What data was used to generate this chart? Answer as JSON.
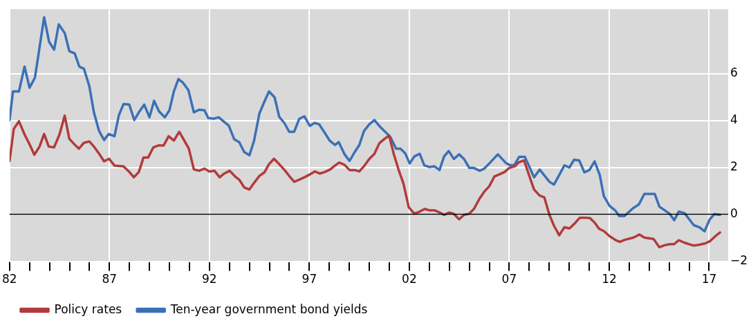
{
  "chart_data": {
    "type": "line",
    "xlim": [
      1982,
      2017.95
    ],
    "ylim": [
      -2,
      8.75
    ],
    "xticks": [
      {
        "value": 1982,
        "label": "82"
      },
      {
        "value": 1983,
        "label": null
      },
      {
        "value": 1984,
        "label": null
      },
      {
        "value": 1985,
        "label": null
      },
      {
        "value": 1986,
        "label": null
      },
      {
        "value": 1987,
        "label": "87"
      },
      {
        "value": 1988,
        "label": null
      },
      {
        "value": 1989,
        "label": null
      },
      {
        "value": 1990,
        "label": null
      },
      {
        "value": 1991,
        "label": null
      },
      {
        "value": 1992,
        "label": "92"
      },
      {
        "value": 1993,
        "label": null
      },
      {
        "value": 1994,
        "label": null
      },
      {
        "value": 1995,
        "label": null
      },
      {
        "value": 1996,
        "label": null
      },
      {
        "value": 1997,
        "label": "97"
      },
      {
        "value": 1998,
        "label": null
      },
      {
        "value": 1999,
        "label": null
      },
      {
        "value": 2000,
        "label": null
      },
      {
        "value": 2001,
        "label": null
      },
      {
        "value": 2002,
        "label": "02"
      },
      {
        "value": 2003,
        "label": null
      },
      {
        "value": 2004,
        "label": null
      },
      {
        "value": 2005,
        "label": null
      },
      {
        "value": 2006,
        "label": null
      },
      {
        "value": 2007,
        "label": "07"
      },
      {
        "value": 2008,
        "label": null
      },
      {
        "value": 2009,
        "label": null
      },
      {
        "value": 2010,
        "label": null
      },
      {
        "value": 2011,
        "label": null
      },
      {
        "value": 2012,
        "label": "12"
      },
      {
        "value": 2013,
        "label": null
      },
      {
        "value": 2014,
        "label": null
      },
      {
        "value": 2015,
        "label": null
      },
      {
        "value": 2016,
        "label": null
      },
      {
        "value": 2017,
        "label": "17"
      }
    ],
    "yticks": [
      {
        "value": -2,
        "label": "−2"
      },
      0,
      2,
      4,
      6
    ],
    "grid": true,
    "legend": "bottom left",
    "marker": "none",
    "line_style": "solid",
    "ref_lines": [
      {
        "axis": "y",
        "value": 0,
        "color": "#000000"
      }
    ],
    "series": [
      {
        "name": "Policy rates",
        "color": "#b23b3b",
        "x": [
          1982.0,
          1982.21,
          1982.47,
          1982.75,
          1983.0,
          1983.24,
          1983.5,
          1983.73,
          1983.96,
          1984.23,
          1984.5,
          1984.76,
          1984.99,
          1985.24,
          1985.47,
          1985.72,
          1985.99,
          1986.25,
          1986.5,
          1986.73,
          1986.98,
          1987.25,
          1987.7,
          1987.97,
          1988.22,
          1988.47,
          1988.7,
          1988.93,
          1989.19,
          1989.46,
          1989.71,
          1989.96,
          1990.22,
          1990.49,
          1990.74,
          1990.97,
          1991.22,
          1991.48,
          1991.75,
          1992.0,
          1992.25,
          1992.51,
          1992.74,
          1993.01,
          1993.28,
          1993.49,
          1993.74,
          1994.0,
          1994.23,
          1994.5,
          1994.75,
          1994.98,
          1995.23,
          1995.49,
          1995.76,
          1996.01,
          1996.24,
          1996.49,
          1996.75,
          1997.02,
          1997.27,
          1997.52,
          1997.78,
          1998.05,
          1998.28,
          1998.5,
          1998.76,
          1999.01,
          1999.27,
          1999.5,
          1999.73,
          1999.99,
          2000.25,
          2000.5,
          2000.73,
          2000.99,
          2001.22,
          2001.48,
          2001.71,
          2001.97,
          2002.25,
          2002.52,
          2002.77,
          2003.02,
          2003.28,
          2003.51,
          2003.74,
          2004.0,
          2004.23,
          2004.49,
          2004.74,
          2005.0,
          2005.23,
          2005.52,
          2005.75,
          2006.0,
          2006.26,
          2006.49,
          2006.77,
          2007.0,
          2007.28,
          2007.46,
          2007.74,
          2008.01,
          2008.24,
          2008.52,
          2008.75,
          2009.01,
          2009.24,
          2009.5,
          2009.76,
          2010.01,
          2010.27,
          2010.53,
          2010.78,
          2011.04,
          2011.27,
          2011.49,
          2011.73,
          2012.02,
          2012.33,
          2012.53,
          2012.79,
          2013.21,
          2013.51,
          2013.76,
          2014.22,
          2014.51,
          2014.79,
          2015.05,
          2015.25,
          2015.48,
          2015.77,
          2016.23,
          2016.52,
          2016.8,
          2017.03,
          2017.31,
          2017.54
        ],
        "values": [
          2.28,
          3.64,
          3.97,
          3.41,
          2.99,
          2.54,
          2.89,
          3.43,
          2.89,
          2.86,
          3.41,
          4.21,
          3.22,
          2.99,
          2.8,
          3.05,
          3.11,
          2.86,
          2.56,
          2.26,
          2.37,
          2.08,
          2.05,
          1.83,
          1.58,
          1.81,
          2.42,
          2.42,
          2.85,
          2.94,
          2.94,
          3.33,
          3.15,
          3.52,
          3.15,
          2.8,
          1.92,
          1.86,
          1.95,
          1.83,
          1.86,
          1.58,
          1.74,
          1.86,
          1.62,
          1.48,
          1.15,
          1.06,
          1.34,
          1.64,
          1.79,
          2.14,
          2.37,
          2.14,
          1.89,
          1.62,
          1.39,
          1.48,
          1.58,
          1.7,
          1.83,
          1.74,
          1.81,
          1.92,
          2.08,
          2.21,
          2.11,
          1.89,
          1.89,
          1.83,
          2.05,
          2.36,
          2.58,
          3.03,
          3.2,
          3.36,
          2.58,
          1.86,
          1.3,
          0.31,
          0.03,
          0.12,
          0.23,
          0.17,
          0.17,
          0.08,
          -0.02,
          0.08,
          0.02,
          -0.21,
          -0.02,
          0.03,
          0.23,
          0.68,
          0.97,
          1.2,
          1.62,
          1.7,
          1.81,
          1.98,
          2.05,
          2.21,
          2.3,
          1.62,
          1.06,
          0.8,
          0.73,
          -0.02,
          -0.49,
          -0.89,
          -0.55,
          -0.6,
          -0.39,
          -0.14,
          -0.14,
          -0.16,
          -0.35,
          -0.61,
          -0.71,
          -0.93,
          -1.1,
          -1.17,
          -1.08,
          -0.99,
          -0.86,
          -0.99,
          -1.05,
          -1.4,
          -1.31,
          -1.27,
          -1.27,
          -1.1,
          -1.21,
          -1.33,
          -1.29,
          -1.24,
          -1.15,
          -0.93,
          -0.77
        ]
      },
      {
        "name": "Ten-year government bond yields",
        "color": "#3b70b6",
        "x": [
          1982.0,
          1982.17,
          1982.47,
          1982.75,
          1983.0,
          1983.27,
          1983.73,
          1983.98,
          1984.23,
          1984.46,
          1984.76,
          1984.99,
          1985.26,
          1985.49,
          1985.72,
          1985.99,
          1986.22,
          1986.48,
          1986.73,
          1986.96,
          1987.25,
          1987.47,
          1987.7,
          1987.99,
          1988.24,
          1988.5,
          1988.74,
          1989.0,
          1989.23,
          1989.48,
          1989.77,
          1990.0,
          1990.22,
          1990.45,
          1990.68,
          1990.95,
          1991.22,
          1991.48,
          1991.75,
          1991.94,
          1992.23,
          1992.46,
          1992.97,
          1993.24,
          1993.49,
          1993.74,
          1994.0,
          1994.23,
          1994.5,
          1994.73,
          1994.98,
          1995.26,
          1995.49,
          1995.76,
          1995.99,
          1996.24,
          1996.49,
          1996.75,
          1997.02,
          1997.27,
          1997.5,
          1997.75,
          1998.01,
          1998.28,
          1998.47,
          1998.76,
          1999.01,
          1999.27,
          1999.5,
          1999.73,
          1999.99,
          2000.25,
          2000.53,
          2000.82,
          2001.05,
          2001.34,
          2001.56,
          2001.79,
          2002.02,
          2002.25,
          2002.52,
          2002.75,
          2003.0,
          2003.25,
          2003.51,
          2003.74,
          2003.97,
          2004.23,
          2004.49,
          2004.74,
          2005.0,
          2005.23,
          2005.52,
          2005.75,
          2006.0,
          2006.43,
          2006.83,
          2007.06,
          2007.26,
          2007.49,
          2007.78,
          2008.01,
          2008.24,
          2008.52,
          2009.01,
          2009.24,
          2009.76,
          2010.01,
          2010.24,
          2010.5,
          2010.76,
          2011.01,
          2011.27,
          2011.53,
          2011.73,
          2012.02,
          2012.3,
          2012.5,
          2012.76,
          2013.19,
          2013.48,
          2013.76,
          2014.28,
          2014.51,
          2015.02,
          2015.25,
          2015.48,
          2015.77,
          2016.23,
          2016.52,
          2016.77,
          2017.03,
          2017.26,
          2017.54
        ],
        "values": [
          4.02,
          5.24,
          5.24,
          6.3,
          5.4,
          5.83,
          8.4,
          7.35,
          7.02,
          8.1,
          7.73,
          6.96,
          6.86,
          6.3,
          6.21,
          5.47,
          4.35,
          3.55,
          3.17,
          3.43,
          3.33,
          4.23,
          4.7,
          4.68,
          4.02,
          4.39,
          4.68,
          4.14,
          4.84,
          4.39,
          4.14,
          4.44,
          5.24,
          5.77,
          5.61,
          5.29,
          4.35,
          4.46,
          4.44,
          4.11,
          4.08,
          4.14,
          3.78,
          3.2,
          3.08,
          2.66,
          2.52,
          3.13,
          4.3,
          4.77,
          5.24,
          4.99,
          4.16,
          3.88,
          3.52,
          3.52,
          4.07,
          4.18,
          3.77,
          3.9,
          3.83,
          3.5,
          3.15,
          2.96,
          3.08,
          2.56,
          2.28,
          2.66,
          2.96,
          3.55,
          3.83,
          4.02,
          3.74,
          3.5,
          3.3,
          2.8,
          2.8,
          2.61,
          2.17,
          2.47,
          2.58,
          2.09,
          2.02,
          2.05,
          1.89,
          2.47,
          2.7,
          2.36,
          2.56,
          2.36,
          1.98,
          1.98,
          1.86,
          1.95,
          2.17,
          2.56,
          2.19,
          2.09,
          2.11,
          2.45,
          2.45,
          2.02,
          1.58,
          1.91,
          1.39,
          1.27,
          2.09,
          2.0,
          2.33,
          2.3,
          1.79,
          1.89,
          2.26,
          1.67,
          0.78,
          0.36,
          0.17,
          -0.07,
          -0.07,
          0.26,
          0.42,
          0.87,
          0.87,
          0.33,
          0.03,
          -0.25,
          0.12,
          0.05,
          -0.46,
          -0.55,
          -0.72,
          -0.21,
          0.01,
          -0.02
        ]
      }
    ]
  }
}
